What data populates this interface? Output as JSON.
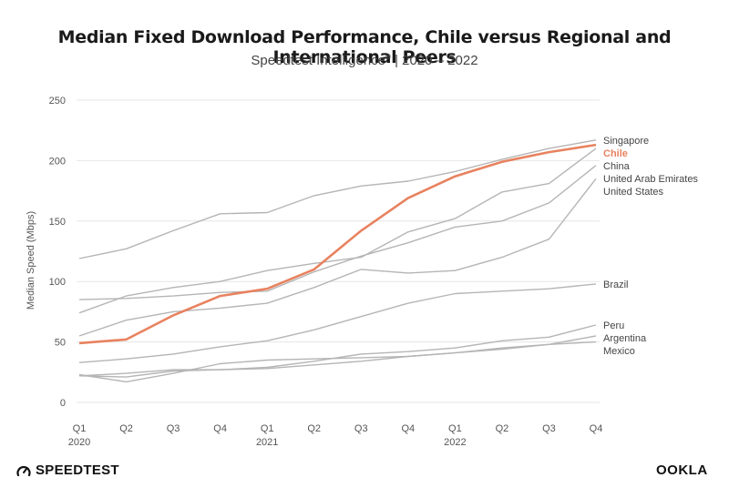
{
  "title": "Median Fixed Download Performance, Chile versus Regional and International Peers",
  "subtitle_main": "Speedtest Intelligence",
  "subtitle_mark": "®",
  "subtitle_rest": " | 2020 – 2022",
  "brand_left": "SPEEDTEST",
  "brand_right": "OOKLA",
  "colors": {
    "highlight": "#e8825f",
    "other": "#b5b5b5",
    "gridline": "#e6e6e6"
  },
  "chart_data": {
    "type": "line",
    "ylabel": "Median Speed (Mbps)",
    "ylim": [
      0,
      250
    ],
    "yticks": [
      0,
      50,
      100,
      150,
      200,
      250
    ],
    "grid": true,
    "x": [
      "Q1",
      "Q2",
      "Q3",
      "Q4",
      "Q1",
      "Q2",
      "Q3",
      "Q4",
      "Q1",
      "Q2",
      "Q3",
      "Q4"
    ],
    "x_years": [
      "2020",
      "",
      "",
      "",
      "2021",
      "",
      "",
      "",
      "2022",
      "",
      "",
      ""
    ],
    "highlight": "Chile",
    "series": [
      {
        "name": "Singapore",
        "values": [
          119,
          127,
          142,
          156,
          157,
          171,
          179,
          183,
          191,
          201,
          210,
          217
        ]
      },
      {
        "name": "Chile",
        "values": [
          49,
          52,
          72,
          88,
          94,
          110,
          142,
          169,
          187,
          199,
          207,
          213
        ]
      },
      {
        "name": "China",
        "values": [
          74,
          88,
          95,
          100,
          109,
          115,
          120,
          141,
          152,
          174,
          181,
          210
        ]
      },
      {
        "name": "United Arab Emirates",
        "values": [
          85,
          86,
          88,
          91,
          92,
          108,
          121,
          132,
          145,
          150,
          165,
          196
        ]
      },
      {
        "name": "United States",
        "values": [
          55,
          68,
          75,
          78,
          82,
          95,
          110,
          107,
          109,
          120,
          135,
          185
        ]
      },
      {
        "name": "Brazil",
        "values": [
          33,
          36,
          40,
          46,
          51,
          60,
          71,
          82,
          90,
          92,
          94,
          98
        ]
      },
      {
        "name": "Peru",
        "values": [
          22,
          24,
          27,
          27,
          29,
          34,
          40,
          42,
          45,
          51,
          54,
          64
        ]
      },
      {
        "name": "Argentina",
        "values": [
          23,
          17,
          24,
          32,
          35,
          36,
          37,
          38,
          41,
          45,
          48,
          55
        ]
      },
      {
        "name": "Mexico",
        "values": [
          22,
          21,
          26,
          27,
          28,
          31,
          34,
          38,
          41,
          44,
          48,
          50
        ]
      }
    ]
  }
}
